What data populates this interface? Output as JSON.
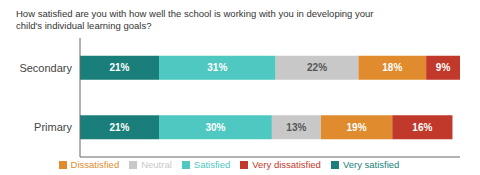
{
  "chart_data": {
    "type": "bar",
    "orientation": "horizontal",
    "stacked": true,
    "title": "How satisfied are you with how well the school is working with you in developing your\nchild's individual learning goals?",
    "categories": [
      "Primary",
      "Secondary"
    ],
    "series": [
      {
        "name": "Very satisfied",
        "color": "#1a7f7a",
        "values": [
          21,
          21
        ],
        "value_labels": [
          "21%",
          "21%"
        ]
      },
      {
        "name": "Satisfied",
        "color": "#4ec8c0",
        "values": [
          30,
          31
        ],
        "value_labels": [
          "30%",
          "31%"
        ]
      },
      {
        "name": "Neutral",
        "color": "#c8c8c8",
        "values": [
          13,
          22
        ],
        "value_labels": [
          "13%",
          "22%"
        ]
      },
      {
        "name": "Dissatisfied",
        "color": "#e08c2e",
        "values": [
          19,
          18
        ],
        "value_labels": [
          "19%",
          "18%"
        ]
      },
      {
        "name": "Very dissatisfied",
        "color": "#c0392b",
        "values": [
          16,
          9
        ],
        "value_labels": [
          "16%",
          "9%"
        ]
      }
    ],
    "xlim": [
      0,
      101
    ],
    "tick_labels": "y",
    "data_labels": true,
    "grid": false,
    "legend": "bottom"
  }
}
